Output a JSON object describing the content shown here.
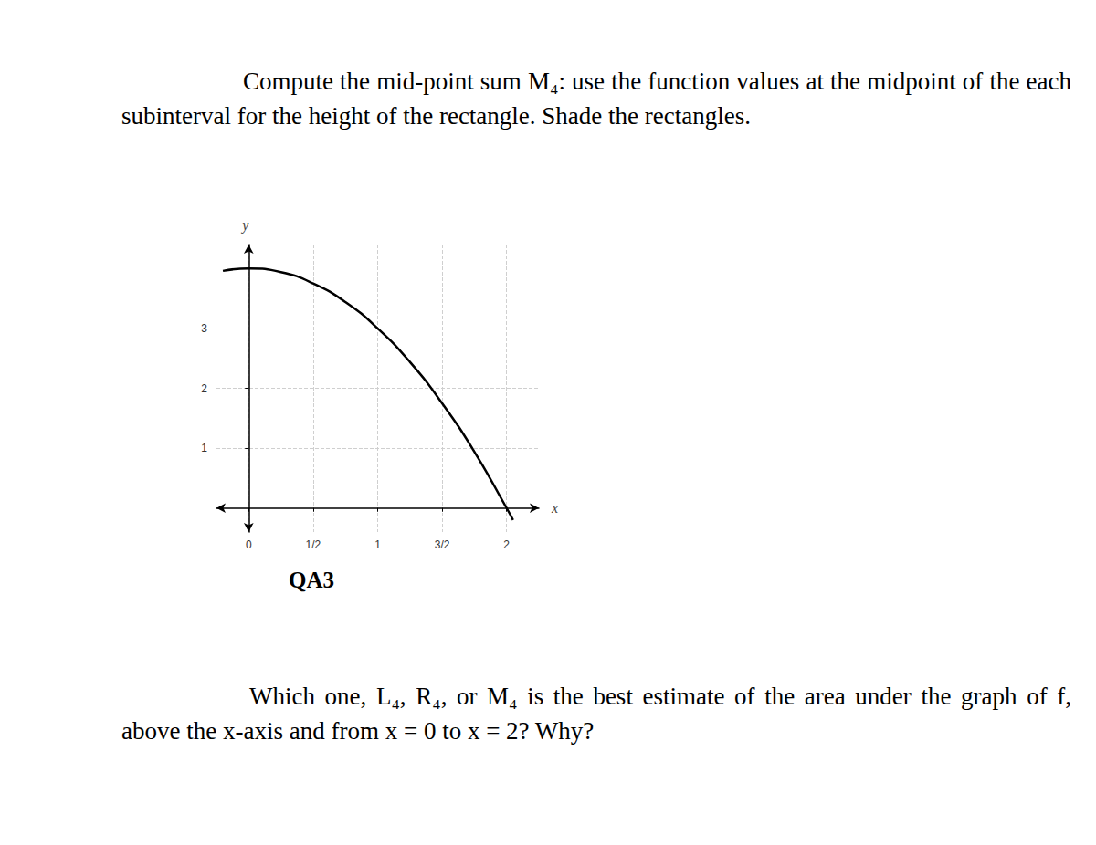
{
  "instruction": "Compute the mid-point sum M₄: use the function values at the midpoint of the each subinterval for the height of the rectangle. Shade the rectangles.",
  "chart_data": {
    "type": "line",
    "xlabel": "x",
    "ylabel": "y",
    "x": [
      -0.2,
      0,
      0.25,
      0.5,
      0.75,
      1,
      1.25,
      1.5,
      1.75,
      2,
      2.05
    ],
    "values": [
      3.96,
      4,
      3.94,
      3.75,
      3.44,
      3,
      2.44,
      1.75,
      0.94,
      0,
      -0.2
    ],
    "color": "#000000",
    "xlim": [
      -0.25,
      2.25
    ],
    "xticks": [
      0,
      {
        "value": 0.5,
        "label": "1/2"
      },
      1,
      {
        "value": 1.5,
        "label": "3/2"
      },
      2
    ],
    "ylim": [
      -0.4,
      4.4
    ],
    "yticks": [
      1,
      2,
      3
    ],
    "grid": true
  },
  "caption": "QA3",
  "question": "Which one, L₄, R₄, or M₄ is the best estimate of the area under the graph of f, above the x-axis and from x = 0 to x = 2? Why?"
}
